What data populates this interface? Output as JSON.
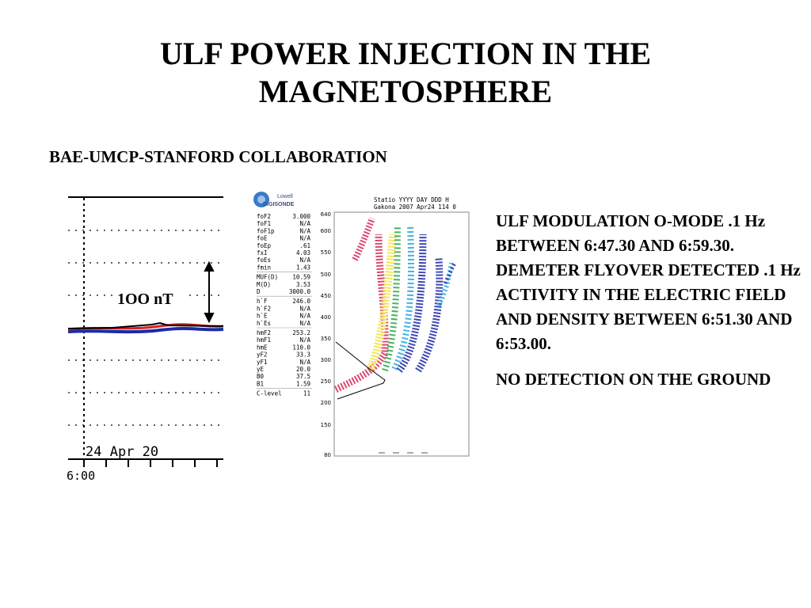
{
  "slide": {
    "title_line1": "ULF POWER INJECTION IN THE",
    "title_line2": "MAGNETOSPHERE",
    "subtitle": "BAE-UMCP-STANFORD COLLABORATION",
    "paragraph1": "ULF MODULATION O-MODE .1 Hz BETWEEN 6:47.30 AND 6:59.30.  DEMETER FLYOVER DETECTED .1 Hz ACTIVITY IN THE ELECTRIC FIELD AND DENSITY BETWEEN 6:51.30 AND 6:53.00.",
    "paragraph2": "NO DETECTION ON THE GROUND"
  },
  "magnetogram": {
    "scale_label": "1OO nT",
    "date_label": "24 Apr 20",
    "time_label": "6:00"
  },
  "ionogram": {
    "logo_line1": "Lowell",
    "logo_line2": "DIGISONDE",
    "header_line1": "Statio YYYY DAY   DDD H",
    "header_line2": "Gakona 2007 Apr24 114 0",
    "params": [
      {
        "name": "foF2",
        "value": "3.000"
      },
      {
        "name": "foF1",
        "value": "N/A"
      },
      {
        "name": "foF1p",
        "value": "N/A"
      },
      {
        "name": "foE",
        "value": "N/A"
      },
      {
        "name": "foEp",
        "value": ".61"
      },
      {
        "name": "fxI",
        "value": "4.03"
      },
      {
        "name": "foEs",
        "value": "N/A"
      },
      {
        "name": "fmin",
        "value": "1.43"
      },
      {
        "name": "MUF(D)",
        "value": "10.59"
      },
      {
        "name": "M(D)",
        "value": "3.53"
      },
      {
        "name": "D",
        "value": "3000.0"
      },
      {
        "name": "h`F",
        "value": "246.0"
      },
      {
        "name": "h`F2",
        "value": "N/A"
      },
      {
        "name": "h`E",
        "value": "N/A"
      },
      {
        "name": "h`Es",
        "value": "N/A"
      },
      {
        "name": "hmF2",
        "value": "253.2"
      },
      {
        "name": "hmF1",
        "value": "N/A"
      },
      {
        "name": "hmE",
        "value": "110.0"
      },
      {
        "name": "yF2",
        "value": "33.3"
      },
      {
        "name": "yF1",
        "value": "N/A"
      },
      {
        "name": "yE",
        "value": "20.0"
      },
      {
        "name": "B0",
        "value": "37.5"
      },
      {
        "name": "B1",
        "value": "1.59"
      },
      {
        "name": "C-level",
        "value": "11"
      }
    ],
    "y_ticks": [
      "640",
      "600",
      "550",
      "500",
      "450",
      "400",
      "350",
      "300",
      "250",
      "200",
      "150",
      "80"
    ],
    "colors": {
      "pink": "#d62a5a",
      "blue": "#1c2aa8",
      "yellow": "#f2e23a",
      "green": "#2aa84a",
      "cyan": "#23a8e0"
    }
  }
}
